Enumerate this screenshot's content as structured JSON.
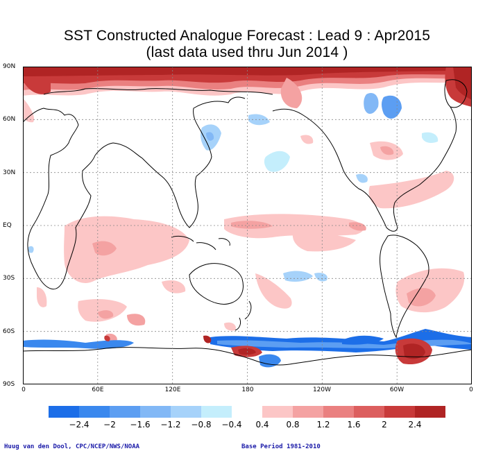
{
  "title": {
    "line1": "SST Constructed Analogue Forecast : Lead 9 : Apr2015",
    "line2": "(last data used thru Jun 2014 )"
  },
  "axes": {
    "lat_labels": [
      "90N",
      "60N",
      "30N",
      "EQ",
      "30S",
      "60S",
      "90S"
    ],
    "lon_labels": [
      "0",
      "60E",
      "120E",
      "180",
      "120W",
      "60W",
      "0"
    ]
  },
  "legend": {
    "labels": [
      "−2.4",
      "−2",
      "−1.6",
      "−1.2",
      "−0.8",
      "−0.4",
      "0.4",
      "0.8",
      "1.2",
      "1.6",
      "2",
      "2.4"
    ],
    "neg_colors": [
      "#1c6ee8",
      "#3a88ee",
      "#5c9ef2",
      "#82b8f6",
      "#a6d2fa",
      "#c4eefc"
    ],
    "pos_colors": [
      "#fcc6c6",
      "#f4a2a2",
      "#ea8080",
      "#dc5e5e",
      "#c83a3a",
      "#b02424"
    ]
  },
  "credits": {
    "left": "Huug van den Dool, CPC/NCEP/NWS/NOAA",
    "right": "Base Period 1981-2010"
  }
}
